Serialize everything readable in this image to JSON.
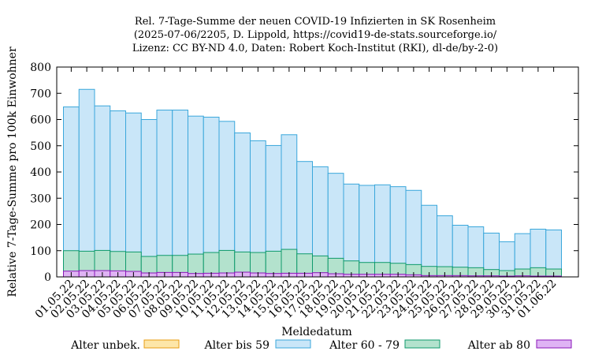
{
  "chart_data": {
    "type": "bar",
    "stacking": "overlaid",
    "title_lines": [
      "Rel. 7-Tage-Summe der neuen COVID-19 Infizierten in SK Rosenheim",
      "(2025-07-06/2205, D. Lippold, https://covid19-de-stats.sourceforge.io/",
      "Lizenz: CC BY-ND 4.0, Daten: Robert Koch-Institut (RKI), dl-de/by-2-0)"
    ],
    "xlabel": "Meldedatum",
    "ylabel": "Relative 7-Tage-Summe pro 100k Einwohner",
    "ylim": [
      0,
      800
    ],
    "yticks": [
      0,
      100,
      200,
      300,
      400,
      500,
      600,
      700,
      800
    ],
    "grid": false,
    "legend_position": "bottom",
    "categories": [
      "01.05.22",
      "02.05.22",
      "03.05.22",
      "04.05.22",
      "05.05.22",
      "06.05.22",
      "07.05.22",
      "08.05.22",
      "09.05.22",
      "10.05.22",
      "11.05.22",
      "12.05.22",
      "13.05.22",
      "14.05.22",
      "15.05.22",
      "16.05.22",
      "17.05.22",
      "18.05.22",
      "19.05.22",
      "20.05.22",
      "21.05.22",
      "22.05.22",
      "23.05.22",
      "24.05.22",
      "25.05.22",
      "26.05.22",
      "27.05.22",
      "28.05.22",
      "29.05.22",
      "30.05.22",
      "31.05.22",
      "01.06.22"
    ],
    "series": [
      {
        "name": "Alter unbek.",
        "fill": "#fde6a8",
        "stroke": "#e89c12",
        "values": [
          0,
          0,
          0,
          0,
          0,
          0,
          0,
          0,
          0,
          0,
          0,
          0,
          0,
          0,
          0,
          0,
          0,
          0,
          0,
          0,
          0,
          0,
          0,
          0,
          0,
          0,
          0,
          0,
          0,
          0,
          0,
          0
        ]
      },
      {
        "name": "Alter bis 59",
        "fill": "#c9e6f8",
        "stroke": "#3aa7db",
        "values": [
          648,
          715,
          652,
          633,
          625,
          600,
          636,
          636,
          613,
          609,
          593,
          549,
          519,
          501,
          542,
          440,
          420,
          395,
          354,
          349,
          351,
          344,
          330,
          273,
          233,
          197,
          191,
          167,
          134,
          165,
          182,
          179
        ]
      },
      {
        "name": "Alter 60 - 79",
        "fill": "#b3e2cd",
        "stroke": "#0f9a6c",
        "values": [
          100,
          98,
          101,
          97,
          95,
          78,
          82,
          82,
          87,
          93,
          101,
          95,
          93,
          98,
          105,
          88,
          80,
          71,
          61,
          55,
          55,
          52,
          47,
          40,
          39,
          37,
          35,
          28,
          24,
          30,
          35,
          30
        ]
      },
      {
        "name": "Alter ab 80",
        "fill": "#dfb3f4",
        "stroke": "#8a16b8",
        "values": [
          22,
          24,
          24,
          23,
          21,
          15,
          17,
          17,
          13,
          14,
          15,
          18,
          15,
          13,
          14,
          14,
          16,
          12,
          10,
          10,
          10,
          10,
          8,
          5,
          5,
          5,
          4,
          4,
          3,
          4,
          3,
          3
        ]
      }
    ]
  }
}
